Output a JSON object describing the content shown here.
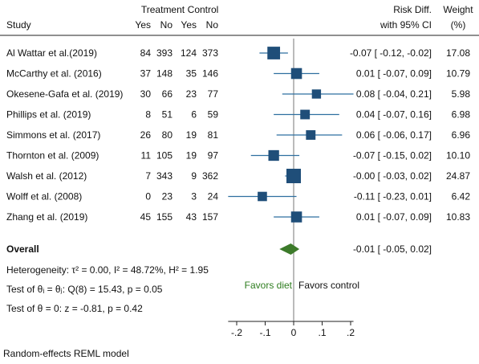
{
  "chart_data": {
    "type": "forest",
    "headers": {
      "treatment": "Treatment",
      "control": "Control",
      "study": "Study",
      "yes": "Yes",
      "no": "No",
      "risk_diff": "Risk Diff.",
      "ci": "with 95% CI",
      "weight": "Weight",
      "weight_unit": "(%)"
    },
    "rows": [
      {
        "study": "Al Wattar et al.(2019)",
        "t_yes": "84",
        "t_no": "393",
        "c_yes": "124",
        "c_no": "373",
        "rd": -0.07,
        "lo": -0.12,
        "hi": -0.02,
        "ci_text": "-0.07 [ -0.12,  -0.02]",
        "weight": "17.08"
      },
      {
        "study": "McCarthy et al. (2016)",
        "t_yes": "37",
        "t_no": "148",
        "c_yes": "35",
        "c_no": "146",
        "rd": 0.01,
        "lo": -0.07,
        "hi": 0.09,
        "ci_text": "0.01 [ -0.07,   0.09]",
        "weight": "10.79"
      },
      {
        "study": "Okesene-Gafa et al. (2019)",
        "t_yes": "30",
        "t_no": "66",
        "c_yes": "23",
        "c_no": "77",
        "rd": 0.08,
        "lo": -0.04,
        "hi": 0.21,
        "ci_text": "0.08 [ -0.04,   0.21]",
        "weight": "5.98"
      },
      {
        "study": "Phillips et al. (2019)",
        "t_yes": "8",
        "t_no": "51",
        "c_yes": "6",
        "c_no": "59",
        "rd": 0.04,
        "lo": -0.07,
        "hi": 0.16,
        "ci_text": "0.04 [ -0.07,   0.16]",
        "weight": "6.98"
      },
      {
        "study": "Simmons et al. (2017)",
        "t_yes": "26",
        "t_no": "80",
        "c_yes": "19",
        "c_no": "81",
        "rd": 0.06,
        "lo": -0.06,
        "hi": 0.17,
        "ci_text": "0.06 [ -0.06,   0.17]",
        "weight": "6.96"
      },
      {
        "study": "Thornton et al. (2009)",
        "t_yes": "11",
        "t_no": "105",
        "c_yes": "19",
        "c_no": "97",
        "rd": -0.07,
        "lo": -0.15,
        "hi": 0.02,
        "ci_text": "-0.07 [ -0.15,   0.02]",
        "weight": "10.10"
      },
      {
        "study": "Walsh et al. (2012)",
        "t_yes": "7",
        "t_no": "343",
        "c_yes": "9",
        "c_no": "362",
        "rd": -0.0,
        "lo": -0.03,
        "hi": 0.02,
        "ci_text": "-0.00 [ -0.03,   0.02]",
        "weight": "24.87"
      },
      {
        "study": "Wolff et al. (2008)",
        "t_yes": "0",
        "t_no": "23",
        "c_yes": "3",
        "c_no": "24",
        "rd": -0.11,
        "lo": -0.23,
        "hi": 0.01,
        "ci_text": "-0.11 [ -0.23,   0.01]",
        "weight": "6.42"
      },
      {
        "study": "Zhang et al. (2019)",
        "t_yes": "45",
        "t_no": "155",
        "c_yes": "43",
        "c_no": "157",
        "rd": 0.01,
        "lo": -0.07,
        "hi": 0.09,
        "ci_text": "0.01 [ -0.07,   0.09]",
        "weight": "10.83"
      }
    ],
    "overall": {
      "label": "Overall",
      "rd": -0.01,
      "lo": -0.05,
      "hi": 0.02,
      "ci_text": "-0.01 [ -0.05,   0.02]"
    },
    "stats": {
      "heterogeneity": "Heterogeneity: τ² = 0.00, I² = 48.72%, H² = 1.95",
      "test_theta_i": "Test of θᵢ = θⱼ: Q(8) = 15.43, p = 0.05",
      "test_theta_0": "Test of θ = 0: z = -0.81, p = 0.42"
    },
    "favors_left": "Favors diet",
    "favors_right": "Favors control",
    "x_ticks": [
      -0.2,
      -0.1,
      0,
      0.1,
      0.2
    ],
    "x_tick_labels": [
      "-.2",
      "-.1",
      "0",
      ".1",
      ".2"
    ],
    "xlim": [
      -0.23,
      0.21
    ],
    "model_note": "Random-effects REML model",
    "colors": {
      "marker": "#1f4e79",
      "ci_line": "#2f6fa0",
      "diamond": "#3c7a2a",
      "favors_left": "#2e7d1f"
    }
  }
}
